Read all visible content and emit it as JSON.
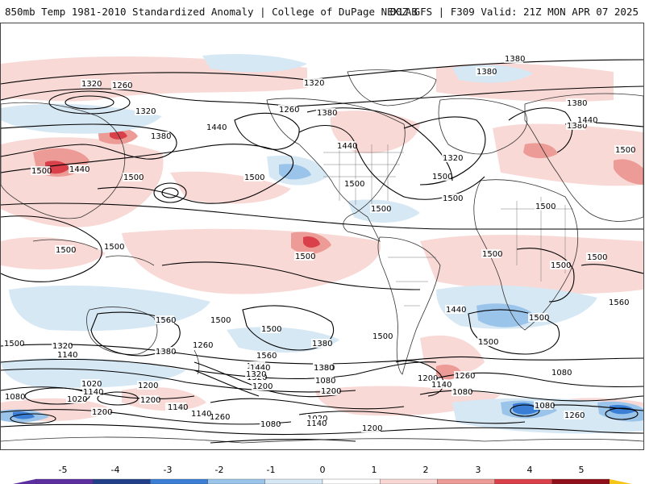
{
  "header": {
    "left_title": "850mb Temp 1981-2010 Standardized Anomaly | College of DuPage NEXLAB",
    "right_title": "00Z GFS | F309 Valid: 21Z MON APR 07 2025"
  },
  "map": {
    "contour_labels": [
      "1380",
      "1320",
      "1260",
      "1320",
      "1380",
      "1440",
      "1500",
      "1440",
      "1500",
      "1500",
      "1500",
      "1320",
      "1260",
      "1380",
      "1440",
      "1500",
      "1500",
      "1500",
      "1380",
      "1380",
      "1320",
      "1500",
      "1380",
      "1440",
      "1500",
      "1500",
      "1500",
      "1500",
      "1500",
      "1500",
      "1500",
      "1560",
      "1500",
      "1500",
      "1500",
      "1440",
      "1560",
      "1500",
      "1500",
      "1440",
      "1320",
      "1500",
      "1320",
      "1140",
      "1380",
      "1260",
      "1560",
      "1440",
      "1320",
      "1380",
      "1380",
      "1380",
      "1200",
      "1260",
      "1080",
      "1020",
      "1080",
      "1140",
      "1200",
      "1200",
      "1140",
      "1080",
      "1200",
      "1140",
      "1020",
      "1080",
      "1020",
      "1140",
      "1200",
      "1200",
      "1140",
      "1260",
      "1080",
      "1260",
      "1080",
      "1200",
      "1140"
    ],
    "land_color": "#ffffff",
    "coastline_color": "#333333"
  },
  "colorbar": {
    "ticks": [
      "-5",
      "-4",
      "-3",
      "-2",
      "-1",
      "0",
      "1",
      "2",
      "3",
      "4",
      "5"
    ],
    "colors": [
      "#5c2ea0",
      "#223f8a",
      "#3a7fd5",
      "#9bc4ea",
      "#d7e8f5",
      "#ffffff",
      "#ffffff",
      "#f8d7d4",
      "#ec9b96",
      "#d9404a",
      "#8f1018",
      "#f5c518"
    ]
  }
}
